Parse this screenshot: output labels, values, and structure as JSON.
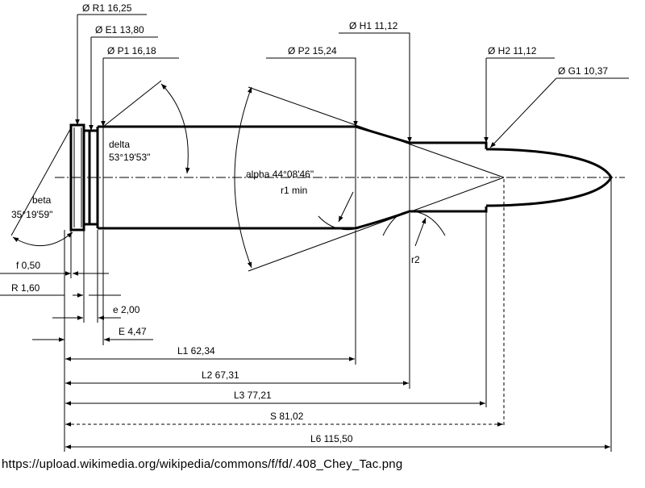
{
  "labels": {
    "R1": "Ø R1  16,25",
    "E1": "Ø E1  13,80",
    "P1": "Ø P1  16,18",
    "P2": "Ø P2  15,24",
    "H1": "Ø H1  11,12",
    "H2": "Ø H2  11,12",
    "G1": "Ø G1  10,37",
    "delta_name": "delta",
    "delta_value": "53°19'53\"",
    "beta_name": "beta",
    "beta_value": "35°19'59\"",
    "alpha": "alpha  44°08'46\"",
    "r1": "r1 min",
    "r2": "r2",
    "f": "f  0,50",
    "R": "R  1,60",
    "e": "e  2,00",
    "E": "E    4,47",
    "L1": "L1  62,34",
    "L2": "L2  67,31",
    "L3": "L3  77,21",
    "S": "S  81,02",
    "L6": "L6  115,50"
  },
  "source_url": "https://upload.wikimedia.org/wikipedia/commons/f/fd/.408_Chey_Tac.png"
}
